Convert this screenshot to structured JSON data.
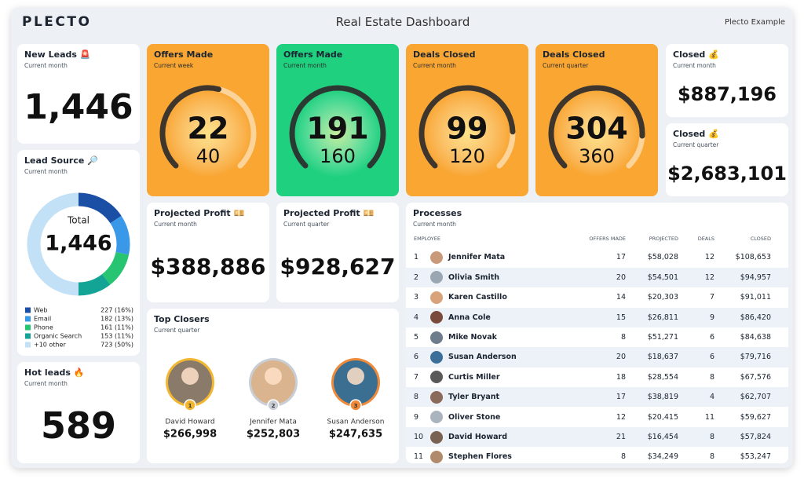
{
  "header": {
    "logo": "PLECTO",
    "title": "Real Estate Dashboard",
    "account": "Plecto Example"
  },
  "new_leads": {
    "title": "New Leads 🚨",
    "subtitle": "Current month",
    "value": "1,446"
  },
  "lead_source": {
    "title": "Lead Source 🔎",
    "subtitle": "Current month",
    "total_label": "Total",
    "total": "1,446",
    "segments": [
      {
        "name": "Web",
        "color": "#1b4fa6",
        "value": 227,
        "label": "227 (16%)"
      },
      {
        "name": "Email",
        "color": "#3a98e8",
        "value": 182,
        "label": "182 (13%)"
      },
      {
        "name": "Phone",
        "color": "#27c472",
        "value": 161,
        "label": "161 (11%)"
      },
      {
        "name": "Organic Search",
        "color": "#13a495",
        "value": 153,
        "label": "153 (11%)"
      },
      {
        "name": "+10 other",
        "color": "#c3e1f6",
        "value": 723,
        "label": "723 (50%)"
      }
    ]
  },
  "hot_leads": {
    "title": "Hot leads 🔥",
    "subtitle": "Current month",
    "value": "589"
  },
  "gauges": [
    {
      "title": "Offers Made",
      "subtitle": "Current week",
      "value": 22,
      "target": 40,
      "color": "#f9a632"
    },
    {
      "title": "Offers Made",
      "subtitle": "Current month",
      "value": 191,
      "target": 160,
      "color": "#1fd07e"
    },
    {
      "title": "Deals Closed",
      "subtitle": "Current month",
      "value": 99,
      "target": 120,
      "color": "#f9a632"
    },
    {
      "title": "Deals Closed",
      "subtitle": "Current quarter",
      "value": 304,
      "target": 360,
      "color": "#f9a632"
    }
  ],
  "closed": [
    {
      "title": "Closed 💰",
      "subtitle": "Current month",
      "value": "$887,196"
    },
    {
      "title": "Closed 💰",
      "subtitle": "Current quarter",
      "value": "$2,683,101"
    }
  ],
  "projected_profit": [
    {
      "title": "Projected Profit 💴",
      "subtitle": "Current month",
      "value": "$388,886"
    },
    {
      "title": "Projected Profit 💴",
      "subtitle": "Current quarter",
      "value": "$928,627"
    }
  ],
  "top_closers": {
    "title": "Top Closers",
    "subtitle": "Current quarter",
    "people": [
      {
        "rank": 1,
        "name": "David Howard",
        "amount": "$266,998"
      },
      {
        "rank": 2,
        "name": "Jennifer Mata",
        "amount": "$252,803"
      },
      {
        "rank": 3,
        "name": "Susan Anderson",
        "amount": "$247,635"
      }
    ]
  },
  "processes": {
    "title": "Processes",
    "subtitle": "Current month",
    "columns": [
      "EMPLOYEE",
      "OFFERS MADE",
      "PROJECTED",
      "DEALS",
      "CLOSED"
    ],
    "rows": [
      [
        1,
        "Jennifer Mata",
        17,
        "$58,028",
        12,
        "$108,653"
      ],
      [
        2,
        "Olivia Smith",
        20,
        "$54,501",
        12,
        "$94,957"
      ],
      [
        3,
        "Karen Castillo",
        14,
        "$20,303",
        7,
        "$91,011"
      ],
      [
        4,
        "Anna Cole",
        15,
        "$26,811",
        9,
        "$86,420"
      ],
      [
        5,
        "Mike Novak",
        8,
        "$51,271",
        6,
        "$84,638"
      ],
      [
        6,
        "Susan Anderson",
        20,
        "$18,637",
        6,
        "$79,716"
      ],
      [
        7,
        "Curtis Miller",
        18,
        "$28,554",
        8,
        "$67,576"
      ],
      [
        8,
        "Tyler Bryant",
        17,
        "$38,819",
        4,
        "$62,707"
      ],
      [
        9,
        "Oliver Stone",
        12,
        "$20,415",
        11,
        "$59,627"
      ],
      [
        10,
        "David Howard",
        21,
        "$16,454",
        8,
        "$57,824"
      ],
      [
        11,
        "Stephen Flores",
        8,
        "$34,249",
        8,
        "$53,247"
      ]
    ]
  }
}
